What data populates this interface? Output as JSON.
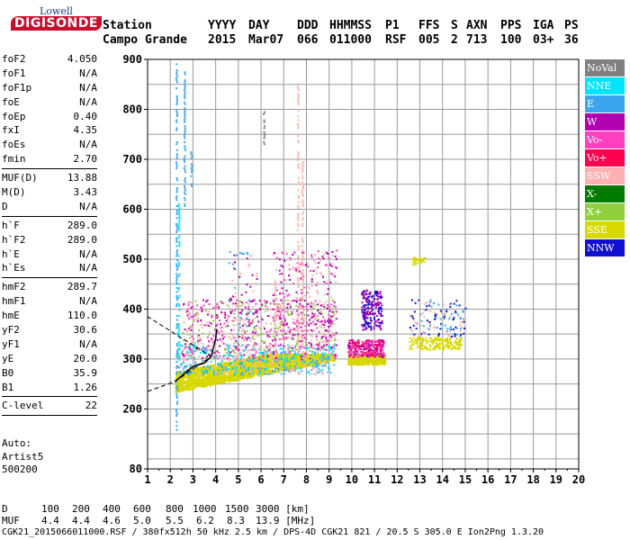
{
  "logo": {
    "line1": "Lowell",
    "line2": "DIGISONDE"
  },
  "header": {
    "row1": [
      {
        "label": "Station",
        "key": "station"
      },
      {
        "label": "YYYY",
        "key": "yyyy"
      },
      {
        "label": "DAY",
        "key": "day"
      },
      {
        "label": "DDD",
        "key": "ddd"
      },
      {
        "label": "HHMMSS",
        "key": "hhmmss"
      },
      {
        "label": "P1",
        "key": "p1"
      },
      {
        "label": "FFS",
        "key": "ffs"
      },
      {
        "label": "S",
        "key": "s"
      },
      {
        "label": "AXN",
        "key": "axn"
      },
      {
        "label": "PPS",
        "key": "pps"
      },
      {
        "label": "IGA",
        "key": "iga"
      },
      {
        "label": "PS",
        "key": "ps"
      }
    ],
    "row2": [
      {
        "value": "Campo Grande"
      },
      {
        "value": "2015"
      },
      {
        "value": "Mar07"
      },
      {
        "value": "066"
      },
      {
        "value": "011000"
      },
      {
        "value": "RSF"
      },
      {
        "value": "005"
      },
      {
        "value": "2"
      },
      {
        "value": "713"
      },
      {
        "value": "100"
      },
      {
        "value": "03+"
      },
      {
        "value": "36"
      }
    ]
  },
  "params": {
    "group1": [
      {
        "name": "foF2",
        "value": "4.050"
      },
      {
        "name": "foF1",
        "value": "N/A"
      },
      {
        "name": "foF1p",
        "value": "N/A"
      },
      {
        "name": "foE",
        "value": "N/A"
      },
      {
        "name": "foEp",
        "value": "0.40"
      },
      {
        "name": "fxI",
        "value": "4.35"
      },
      {
        "name": "foEs",
        "value": "N/A"
      },
      {
        "name": "fmin",
        "value": "2.70"
      }
    ],
    "group2": [
      {
        "name": "MUF(D)",
        "value": "13.88"
      },
      {
        "name": "M(D)",
        "value": "3.43"
      },
      {
        "name": "D",
        "value": "N/A"
      }
    ],
    "group3": [
      {
        "name": "h`F",
        "value": "289.0"
      },
      {
        "name": "h`F2",
        "value": "289.0"
      },
      {
        "name": "h`E",
        "value": "N/A"
      },
      {
        "name": "h`Es",
        "value": "N/A"
      }
    ],
    "group4": [
      {
        "name": "hmF2",
        "value": "289.7"
      },
      {
        "name": "hmF1",
        "value": "N/A"
      },
      {
        "name": "hmE",
        "value": "110.0"
      },
      {
        "name": "yF2",
        "value": "30.6"
      },
      {
        "name": "yF1",
        "value": "N/A"
      },
      {
        "name": "yE",
        "value": "20.0"
      },
      {
        "name": "B0",
        "value": "35.9"
      },
      {
        "name": "B1",
        "value": "1.26"
      }
    ],
    "group5": [
      {
        "name": "C-level",
        "value": "22"
      }
    ]
  },
  "auto": {
    "line1": "Auto:",
    "line2": "Artist5",
    "line3": "500200"
  },
  "legend": [
    {
      "label": "NoVal",
      "color": "#808080"
    },
    {
      "label": "NNE",
      "color": "#00e5ff"
    },
    {
      "label": "E",
      "color": "#3aa6f0"
    },
    {
      "label": "W",
      "color": "#b000b0"
    },
    {
      "label": "Vo-",
      "color": "#ff40c0"
    },
    {
      "label": "Vo+",
      "color": "#ff0050"
    },
    {
      "label": "SSW",
      "color": "#ffb0b0"
    },
    {
      "label": "X-",
      "color": "#007a00"
    },
    {
      "label": "X+",
      "color": "#90d040"
    },
    {
      "label": "SSE",
      "color": "#d8d800"
    },
    {
      "label": "NNW",
      "color": "#1010d0"
    }
  ],
  "chart_data": {
    "type": "scatter",
    "title": "",
    "xlabel": "",
    "ylabel": "",
    "xlim": [
      1,
      20
    ],
    "ylim": [
      80,
      900
    ],
    "x_ticks": [
      "1",
      "2",
      "3",
      "4",
      "5",
      "6",
      "7",
      "8",
      "9",
      "10",
      "11",
      "12",
      "13",
      "14",
      "15",
      "16",
      "17",
      "18",
      "19",
      "20"
    ],
    "y_ticks": [
      "80",
      "200",
      "300",
      "400",
      "500",
      "600",
      "700",
      "800",
      "900"
    ],
    "grid": true,
    "profile_trace": [
      [
        2.2,
        255
      ],
      [
        2.6,
        270
      ],
      [
        3.0,
        285
      ],
      [
        3.5,
        292
      ],
      [
        3.8,
        305
      ],
      [
        4.0,
        340
      ],
      [
        4.05,
        360
      ]
    ],
    "dashed_extrapolation": [
      [
        1.0,
        235
      ],
      [
        2.2,
        255
      ],
      [
        3.8,
        305
      ],
      [
        1.0,
        385
      ]
    ]
  },
  "bottom": {
    "d_label": "D",
    "d_values": [
      "100",
      "200",
      "400",
      "600",
      "800",
      "1000",
      "1500",
      "3000 [km]"
    ],
    "muf_label": "MUF",
    "muf_values": [
      "4.4",
      "4.4",
      "4.6",
      "5.0",
      "5.5",
      "6.2",
      "8.3",
      "13.9 [MHz]"
    ],
    "footer": "CGK21_2015066011000.RSF / 380fx512h 50 kHz 2.5 km / DPS-4D CGK21 821 / 20.5 S 305.0 E Ion2Png 1.3.20"
  }
}
